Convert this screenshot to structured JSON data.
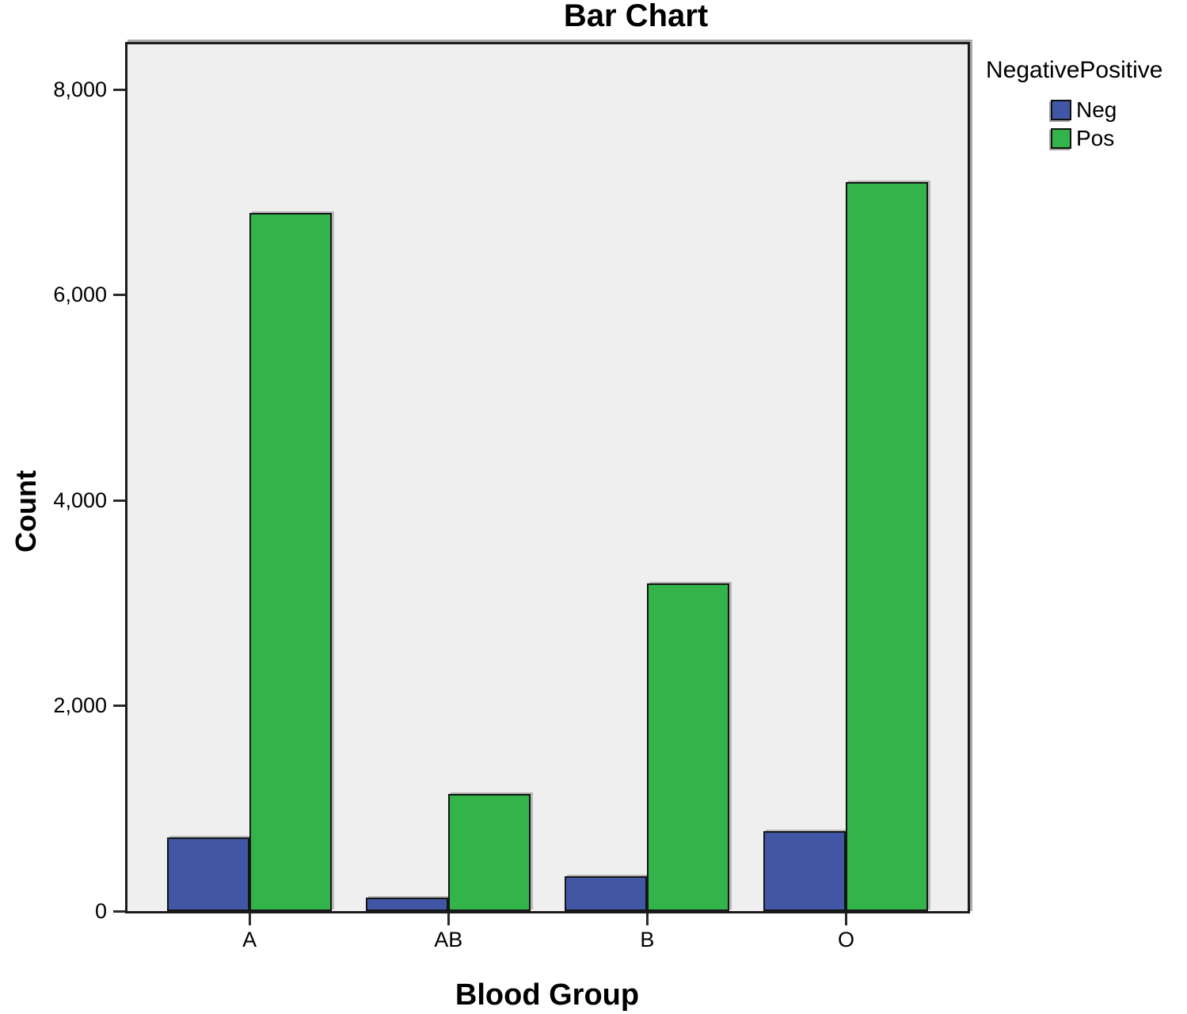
{
  "chart_data": {
    "type": "bar",
    "title": "Bar Chart",
    "xlabel": "Blood Group",
    "ylabel": "Count",
    "categories": [
      "A",
      "AB",
      "B",
      "O"
    ],
    "series": [
      {
        "name": "Neg",
        "color": "#4156a5",
        "values": [
          720,
          130,
          340,
          780
        ]
      },
      {
        "name": "Pos",
        "color": "#33b44a",
        "values": [
          6800,
          1140,
          3190,
          7100
        ]
      }
    ],
    "ylim": [
      0,
      8440
    ],
    "yticks": [
      {
        "value": 0,
        "label": "0"
      },
      {
        "value": 2000,
        "label": "2,000"
      },
      {
        "value": 4000,
        "label": "4,000"
      },
      {
        "value": 6000,
        "label": "6,000"
      },
      {
        "value": 8000,
        "label": "8,000"
      }
    ],
    "grid": false,
    "plot_background": "#efefef",
    "legend": {
      "title": "NegativePositive",
      "position": "top-right",
      "entries": [
        {
          "label": "Neg",
          "color": "#4156a5"
        },
        {
          "label": "Pos",
          "color": "#33b44a"
        }
      ]
    }
  }
}
